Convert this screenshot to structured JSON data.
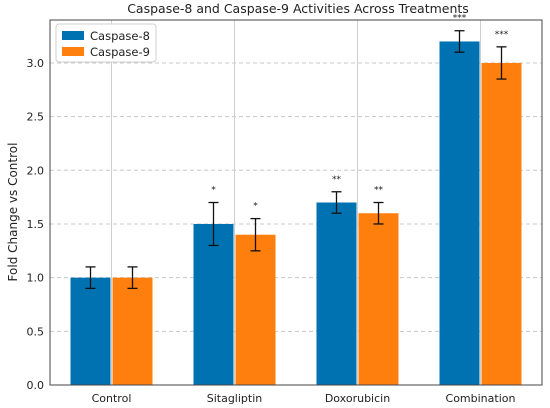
{
  "chart_data": {
    "type": "bar",
    "title": "Caspase-8 and Caspase-9 Activities Across Treatments",
    "xlabel": "",
    "ylabel": "Fold Change vs Control",
    "categories": [
      "Control",
      "Sitagliptin",
      "Doxorubicin",
      "Combination"
    ],
    "series": [
      {
        "name": "Caspase-8",
        "color": "#0072B2",
        "values": [
          1.0,
          1.5,
          1.7,
          3.2
        ],
        "errors": [
          0.1,
          0.2,
          0.1,
          0.1
        ],
        "significance": [
          "",
          "*",
          "**",
          "***"
        ]
      },
      {
        "name": "Caspase-9",
        "color": "#FF7F0E",
        "values": [
          1.0,
          1.4,
          1.6,
          3.0
        ],
        "errors": [
          0.1,
          0.15,
          0.1,
          0.15
        ],
        "significance": [
          "",
          "*",
          "**",
          "***"
        ]
      }
    ],
    "ylim": [
      0,
      3.4
    ],
    "yticks": [
      "0.0",
      "0.5",
      "1.0",
      "1.5",
      "2.0",
      "2.5",
      "3.0"
    ],
    "grid": true,
    "legend_position": "top-left"
  }
}
